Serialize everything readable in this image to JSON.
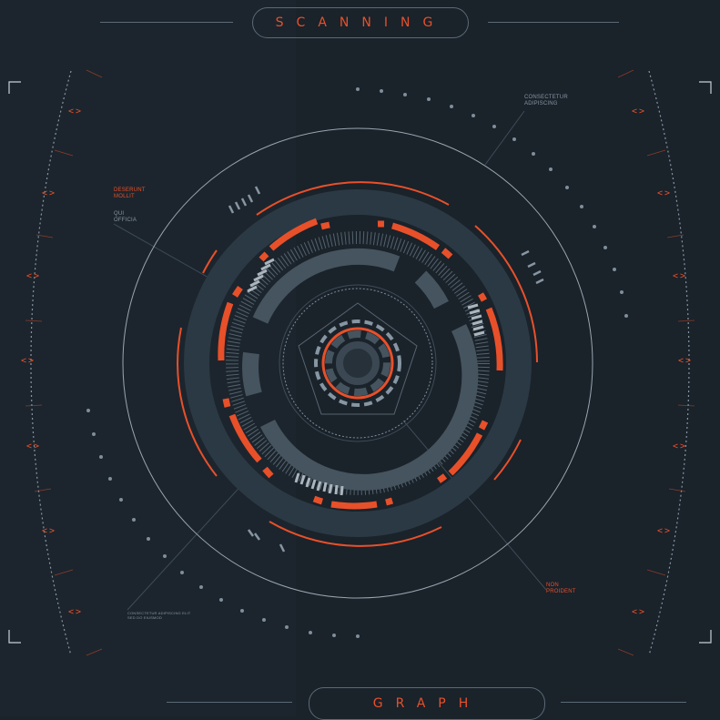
{
  "header": {
    "title": "SCANNING"
  },
  "footer": {
    "title": "GRAPH"
  },
  "labels": {
    "top_right": [
      "CONSECTETUR",
      "ADIPISCING"
    ],
    "left_orange": [
      "DESERUNT",
      "MOLLIT"
    ],
    "left_grey": [
      "QUI",
      "OFFICIA"
    ],
    "bottom_right": [
      "NON",
      "PROIDENT"
    ],
    "bottom_left": [
      "CONSECTETUR ADIPISCING ELIT",
      "SED DO EIUSMOD"
    ]
  },
  "side_arrow_glyph": "<>",
  "colors": {
    "background": "#1a222a",
    "accent": "#e8502a",
    "ring_dark": "#2b3944",
    "ring_mid": "#45545f",
    "line": "#8796a3"
  }
}
